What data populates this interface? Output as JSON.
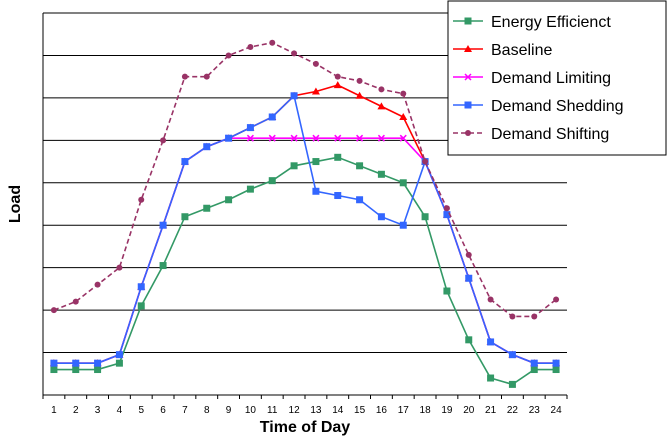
{
  "chart_data": {
    "type": "line",
    "title": "",
    "xlabel": "Time of Day",
    "ylabel": "Load",
    "categories": [
      1,
      2,
      3,
      4,
      5,
      6,
      7,
      8,
      9,
      10,
      11,
      12,
      13,
      14,
      15,
      16,
      17,
      18,
      19,
      20,
      21,
      22,
      23,
      24
    ],
    "ylim": [
      0,
      9
    ],
    "y_gridlines": [
      1,
      2,
      3,
      4,
      5,
      6,
      7,
      8,
      9
    ],
    "y_tick_labels": false,
    "grid": "horizontal",
    "legend_position": "top-right",
    "series": [
      {
        "name": "Energy Efficienct",
        "color": "#339966",
        "marker": "square",
        "line_style": "solid",
        "values": [
          0.6,
          0.6,
          0.6,
          0.75,
          2.1,
          3.05,
          4.2,
          4.4,
          4.6,
          4.85,
          5.05,
          5.4,
          5.5,
          5.6,
          5.4,
          5.2,
          5.0,
          4.2,
          2.45,
          1.3,
          0.4,
          0.25,
          0.6,
          0.6
        ]
      },
      {
        "name": "Baseline",
        "color": "#ff0000",
        "marker": "triangle",
        "line_style": "solid",
        "values": [
          0.75,
          0.75,
          0.75,
          0.95,
          2.55,
          4.0,
          5.5,
          5.85,
          6.05,
          6.3,
          6.55,
          7.05,
          7.15,
          7.3,
          7.05,
          6.8,
          6.55,
          5.5,
          4.25,
          2.75,
          1.25,
          0.95,
          0.75,
          0.75
        ]
      },
      {
        "name": "Demand Limiting",
        "color": "#ff00ff",
        "marker": "x",
        "line_style": "solid",
        "values": [
          0.75,
          0.75,
          0.75,
          0.95,
          2.55,
          4.0,
          5.5,
          5.85,
          6.05,
          6.05,
          6.05,
          6.05,
          6.05,
          6.05,
          6.05,
          6.05,
          6.05,
          5.5,
          4.25,
          2.75,
          1.25,
          0.95,
          0.75,
          0.75
        ]
      },
      {
        "name": "Demand Shedding",
        "color": "#3366ff",
        "marker": "square",
        "line_style": "solid",
        "values": [
          0.75,
          0.75,
          0.75,
          0.95,
          2.55,
          4.0,
          5.5,
          5.85,
          6.05,
          6.3,
          6.55,
          7.05,
          4.8,
          4.7,
          4.6,
          4.2,
          4.0,
          5.5,
          4.25,
          2.75,
          1.25,
          0.95,
          0.75,
          0.75
        ]
      },
      {
        "name": "Demand Shifting",
        "color": "#993366",
        "marker": "circle",
        "line_style": "dashed",
        "values": [
          2.0,
          2.2,
          2.6,
          3.0,
          4.6,
          6.0,
          7.5,
          7.5,
          8.0,
          8.2,
          8.3,
          8.05,
          7.8,
          7.5,
          7.4,
          7.2,
          7.1,
          5.5,
          4.4,
          3.3,
          2.25,
          1.85,
          1.85,
          2.25
        ]
      }
    ]
  }
}
